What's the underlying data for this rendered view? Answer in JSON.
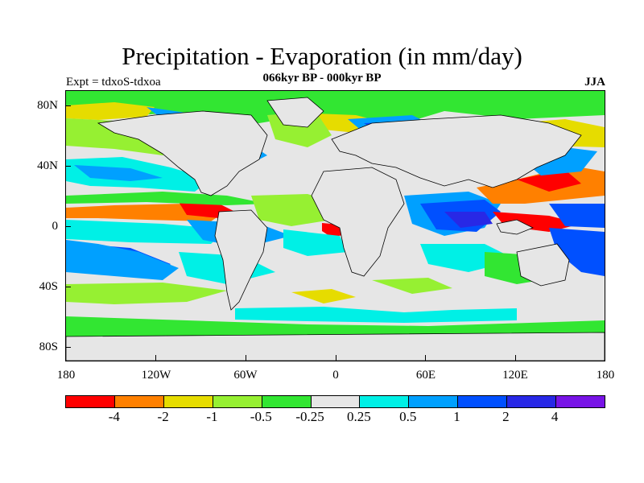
{
  "header": {
    "title": "Precipitation - Evaporation (in mm/day)",
    "subtitle": "066kyr BP - 000kyr BP",
    "left_label": "Expt = tdxoS-tdxoa",
    "right_label": "JJA"
  },
  "axes": {
    "y_ticks": [
      "80N",
      "40N",
      "0",
      "40S",
      "80S"
    ],
    "x_ticks": [
      "180",
      "120W",
      "60W",
      "0",
      "60E",
      "120E",
      "180"
    ]
  },
  "colorbar": {
    "colors": [
      "#ff0000",
      "#ff8000",
      "#e6dc00",
      "#96f032",
      "#32e632",
      "#e6e6e6",
      "#00f0e6",
      "#00a0ff",
      "#0050ff",
      "#2828e6",
      "#7814e6"
    ],
    "labels": [
      "-4",
      "-2",
      "-1",
      "-0.5",
      "-0.25",
      "0.25",
      "0.5",
      "1",
      "2",
      "4"
    ]
  },
  "map": {
    "background_color": "#e6e6e6",
    "coastline_color": "#000000"
  }
}
